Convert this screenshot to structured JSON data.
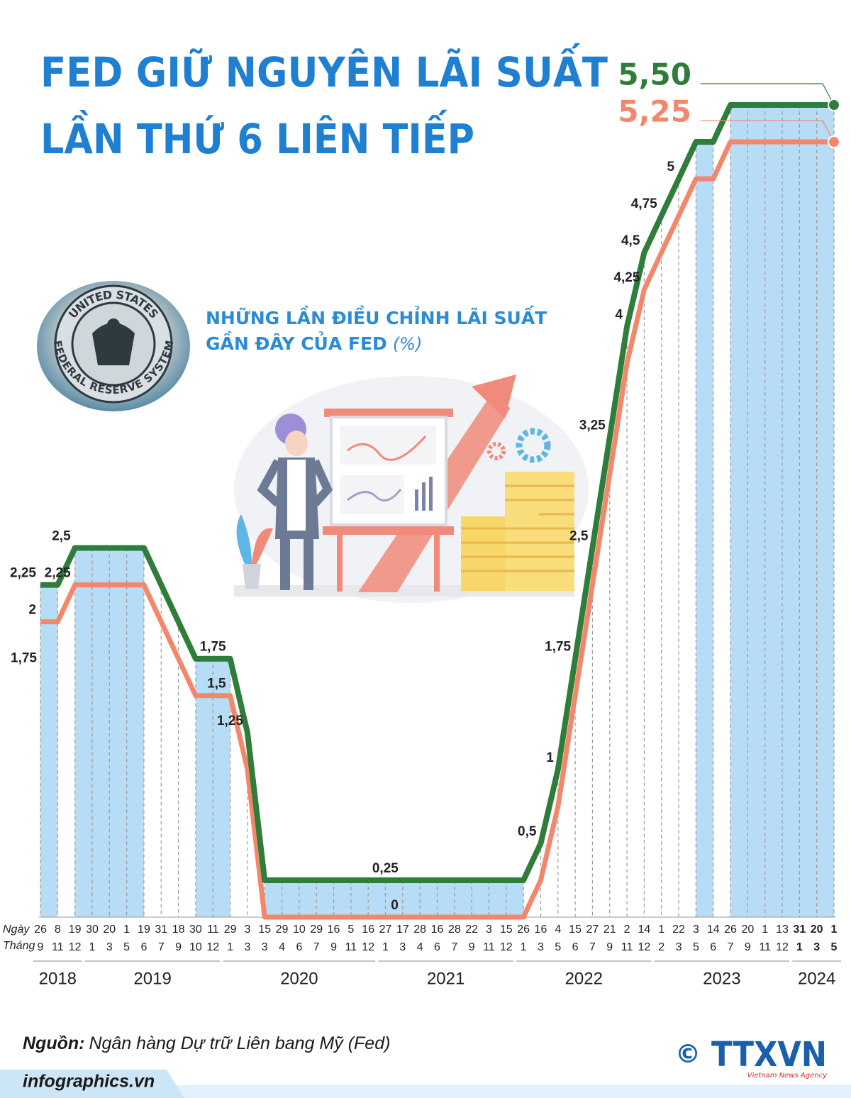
{
  "chart_data": {
    "type": "line",
    "title": [
      "FED GIỮ NGUYÊN LÃI SUẤT",
      "LẦN THỨ 6 LIÊN TIẾP"
    ],
    "subtitle": [
      "NHỮNG LẦN ĐIỀU CHỈNH LÃI SUẤT",
      "GẦN ĐÂY CỦA FED"
    ],
    "unit": "(%)",
    "x_row_labels": [
      "Ngày",
      "Tháng"
    ],
    "days": [
      26,
      8,
      19,
      30,
      20,
      1,
      19,
      31,
      18,
      30,
      11,
      29,
      3,
      15,
      29,
      10,
      29,
      16,
      5,
      16,
      27,
      17,
      28,
      16,
      28,
      22,
      3,
      15,
      26,
      16,
      4,
      15,
      27,
      21,
      2,
      14,
      1,
      22,
      3,
      14,
      26,
      20,
      1,
      13,
      31,
      20,
      1
    ],
    "months": [
      9,
      11,
      12,
      1,
      3,
      5,
      6,
      7,
      9,
      10,
      12,
      1,
      3,
      3,
      4,
      6,
      7,
      9,
      11,
      12,
      1,
      3,
      4,
      6,
      7,
      9,
      11,
      12,
      1,
      3,
      5,
      6,
      7,
      9,
      11,
      12,
      2,
      3,
      5,
      6,
      7,
      9,
      11,
      12,
      1,
      3,
      5
    ],
    "years": [
      "2018",
      "2019",
      "2020",
      "2021",
      "2022",
      "2023",
      "2024"
    ],
    "series": [
      {
        "color": "#2e7d3a",
        "values": [
          2.25,
          2.25,
          2.5,
          2.5,
          2.5,
          2.5,
          2.5,
          2.25,
          2.0,
          1.75,
          1.75,
          1.75,
          1.25,
          0.25,
          0.25,
          0.25,
          0.25,
          0.25,
          0.25,
          0.25,
          0.25,
          0.25,
          0.25,
          0.25,
          0.25,
          0.25,
          0.25,
          0.25,
          0.25,
          0.5,
          1.0,
          1.75,
          2.5,
          3.25,
          4.0,
          4.5,
          4.75,
          5.0,
          5.25,
          5.25,
          5.5,
          5.5,
          5.5,
          5.5,
          5.5,
          5.5,
          5.5
        ],
        "value_labels": [
          "2,25",
          null,
          "2,5",
          null,
          null,
          null,
          null,
          null,
          null,
          null,
          null,
          "1,75",
          "1,25",
          null,
          null,
          null,
          null,
          null,
          null,
          null,
          null,
          "0,25",
          null,
          null,
          null,
          null,
          null,
          null,
          null,
          "0,5",
          "1",
          "1,75",
          "2,5",
          "3,25",
          "4",
          "4,5",
          "4,75",
          "5",
          null,
          null,
          null,
          null,
          null,
          null,
          null,
          null,
          "5,50"
        ]
      },
      {
        "color": "#f2876b",
        "values": [
          2.0,
          2.0,
          2.25,
          2.25,
          2.25,
          2.25,
          2.25,
          2.0,
          1.75,
          1.5,
          1.5,
          1.5,
          1.0,
          0,
          0,
          0,
          0,
          0,
          0,
          0,
          0,
          0,
          0,
          0,
          0,
          0,
          0,
          0,
          0,
          0.25,
          0.75,
          1.5,
          2.25,
          3.0,
          3.75,
          4.25,
          4.5,
          4.75,
          5.0,
          5.0,
          5.25,
          5.25,
          5.25,
          5.25,
          5.25,
          5.25,
          5.25
        ],
        "value_labels": [
          "2",
          null,
          "2,25",
          null,
          null,
          null,
          null,
          null,
          null,
          null,
          null,
          "1,5",
          null,
          null,
          null,
          null,
          null,
          null,
          null,
          null,
          null,
          "0",
          null,
          null,
          null,
          null,
          null,
          null,
          null,
          null,
          null,
          null,
          null,
          null,
          null,
          "4,25",
          null,
          null,
          null,
          null,
          null,
          null,
          null,
          null,
          null,
          null,
          "5,25"
        ]
      }
    ],
    "annotations": [
      {
        "value": 1.75,
        "label": "1,75"
      }
    ]
  },
  "seal": {
    "text": [
      "UNITED STATES",
      "FEDERAL RESERVE SYSTEM"
    ]
  },
  "footer": {
    "source_label": "Nguồn:",
    "source": "Ngân hàng Dự trữ Liên bang Mỹ (Fed)",
    "website": "infographics.vn",
    "copyright": "©",
    "agency": "TTXVN",
    "agency_en": "Vietnam News Agency"
  }
}
